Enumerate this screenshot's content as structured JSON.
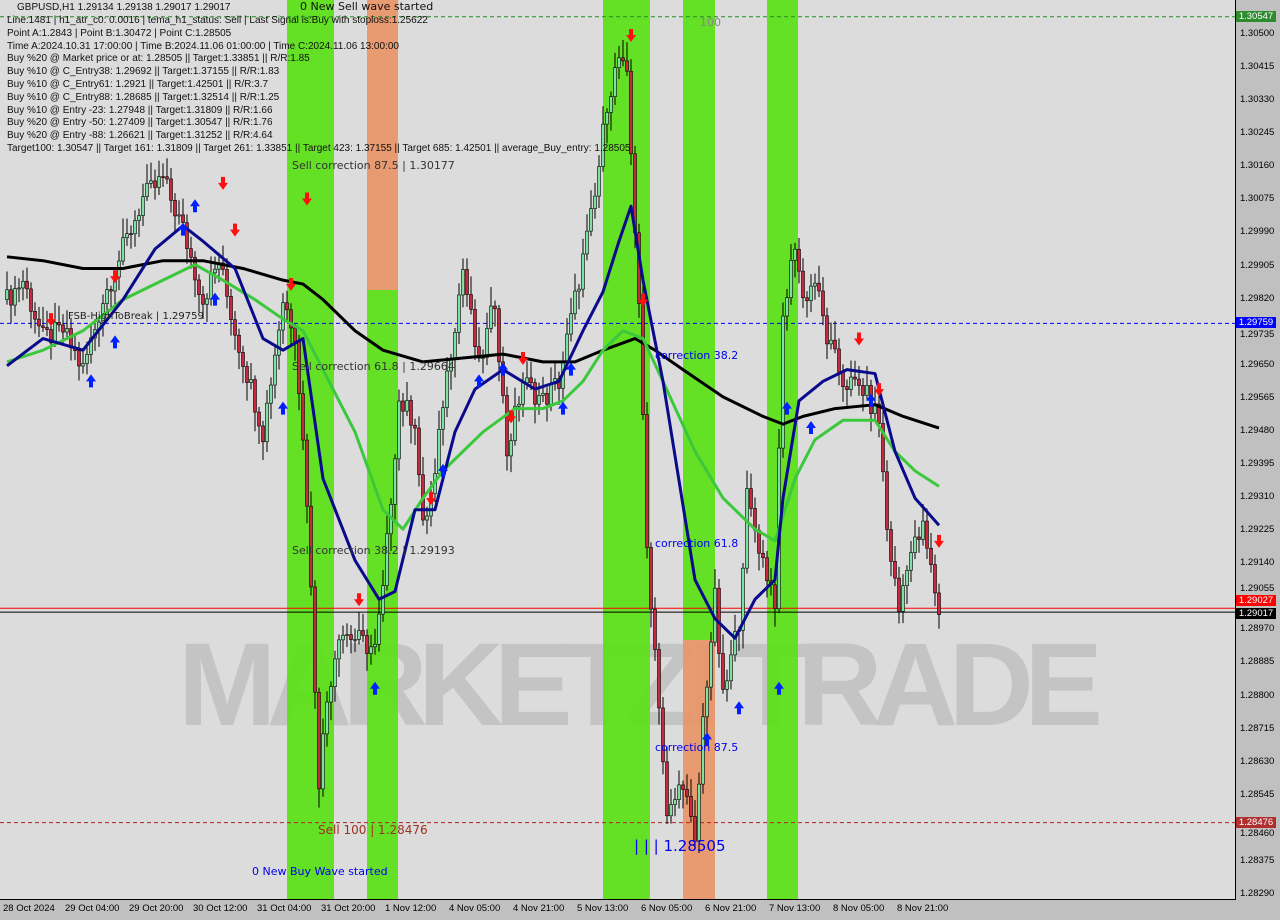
{
  "header": {
    "symbol_line": "GBPUSD,H1  1.29134 1.29138 1.29017 1.29017",
    "wave_top": "0 New Sell wave started"
  },
  "info_lines": [
    "Line:1481 | h1_atr_c0: 0.0016 | tema_h1_status: Sell | Last Signal is:Buy with stoploss:1.25622",
    "Point A:1.2843 | Point B:1.30472 | Point C:1.28505",
    "Time A:2024.10.31 17:00:00 | Time B:2024.11.06 01:00:00 | Time C:2024.11.06 13:00:00",
    "Buy %20 @ Market price or at: 1.28505 || Target:1.33851 || R/R:1.85",
    "Buy %10 @ C_Entry38: 1.29692 || Target:1.37155 || R/R:1.83",
    "Buy %10 @ C_Entry61: 1.2921 || Target:1.42501 || R/R:3.7",
    "Buy %10 @ C_Entry88: 1.28685 || Target:1.32514 || R/R:1.25",
    "Buy %10 @ Entry -23: 1.27948 || Target:1.31809 || R/R:1.66",
    "Buy %20 @ Entry -50: 1.27409 || Target:1.30547 || R/R:1.76",
    "Buy %20 @ Entry -88: 1.26621 || Target:1.31252 || R/R:4.64",
    "Target100: 1.30547 || Target 161: 1.31809 || Target 261: 1.33851 || Target 423: 1.37155 || Target 685: 1.42501 || average_Buy_entry: 1.28505"
  ],
  "annotations": {
    "sell_875": "Sell correction 87.5 | 1.30177",
    "sell_618": "Sell correction 61.8 | 1.29664",
    "sell_382": "Sell correction 38.2 | 1.29193",
    "sell_100": "Sell 100 | 1.28476",
    "buy_wave": "0 New Buy Wave started",
    "corr_382": "correction 38.2",
    "corr_618": "correction 61.8",
    "corr_875": "correction 87.5",
    "point_c": "| | | 1.28505",
    "hundred": "100",
    "fsb": "FSB-HighToBreak | 1.29759",
    "watermark": "MARKETZI TRADE"
  },
  "colors": {
    "up": "#7fe0a0",
    "down": "#c8283c",
    "ma_slow": "#000000",
    "ma_mid": "#3cc83c",
    "ma_fast": "#0a0a8c",
    "band_green": "#5ee01a",
    "band_orange": "#e8966a",
    "background": "#dcdcdc"
  },
  "chart_data": {
    "type": "candlestick",
    "symbol": "GBPUSD",
    "timeframe": "H1",
    "ylim": [
      1.2829,
      1.3055
    ],
    "y_ticks": [
      "1.30500",
      "1.30415",
      "1.30330",
      "1.30245",
      "1.30160",
      "1.30075",
      "1.29990",
      "1.29905",
      "1.29820",
      "1.29735",
      "1.29650",
      "1.29565",
      "1.29480",
      "1.29395",
      "1.29310",
      "1.29225",
      "1.29140",
      "1.29055",
      "1.28970",
      "1.28885",
      "1.28800",
      "1.28715",
      "1.28630",
      "1.28545",
      "1.28460",
      "1.28375",
      "1.28290"
    ],
    "x_ticks": [
      "28 Oct 2024",
      "29 Oct 04:00",
      "29 Oct 20:00",
      "30 Oct 12:00",
      "31 Oct 04:00",
      "31 Oct 20:00",
      "1 Nov 12:00",
      "4 Nov 05:00",
      "4 Nov 21:00",
      "5 Nov 13:00",
      "6 Nov 05:00",
      "6 Nov 21:00",
      "7 Nov 13:00",
      "8 Nov 05:00",
      "8 Nov 21:00"
    ],
    "levels": [
      {
        "price": 1.30547,
        "label": "1.30547",
        "color": "#228b22",
        "style": "dashed"
      },
      {
        "price": 1.29759,
        "label": "1.29759",
        "color": "#0000ff",
        "style": "dashed"
      },
      {
        "price": 1.29027,
        "label": "1.29027",
        "color": "#ff0000",
        "style": "solid"
      },
      {
        "price": 1.29017,
        "label": "1.29017",
        "color": "#000000",
        "style": "solid"
      },
      {
        "price": 1.28476,
        "label": "1.28476",
        "color": "#b22222",
        "style": "dashed"
      }
    ],
    "close_path": [
      [
        1,
        1.2982
      ],
      [
        5,
        1.2987
      ],
      [
        10,
        1.2972
      ],
      [
        15,
        1.2974
      ],
      [
        20,
        1.2964
      ],
      [
        25,
        1.2982
      ],
      [
        30,
        1.2995
      ],
      [
        35,
        1.3008
      ],
      [
        40,
        1.3013
      ],
      [
        45,
        1.3
      ],
      [
        50,
        1.2982
      ],
      [
        54,
        1.2992
      ],
      [
        58,
        1.2974
      ],
      [
        63,
        1.2956
      ],
      [
        65,
        1.2948
      ],
      [
        70,
        1.2982
      ],
      [
        73,
        1.2974
      ],
      [
        76,
        1.2931
      ],
      [
        79,
        1.2859
      ],
      [
        81,
        1.2879
      ],
      [
        84,
        1.2897
      ],
      [
        88,
        1.2895
      ],
      [
        93,
        1.2892
      ],
      [
        95,
        1.2907
      ],
      [
        99,
        1.2956
      ],
      [
        103,
        1.2951
      ],
      [
        105,
        1.2923
      ],
      [
        108,
        1.2936
      ],
      [
        110,
        1.2956
      ],
      [
        115,
        1.299
      ],
      [
        119,
        1.2964
      ],
      [
        123,
        1.2982
      ],
      [
        126,
        1.2943
      ],
      [
        130,
        1.2961
      ],
      [
        135,
        1.2956
      ],
      [
        139,
        1.2961
      ],
      [
        143,
        1.2982
      ],
      [
        148,
        1.3008
      ],
      [
        151,
        1.3033
      ],
      [
        154,
        1.3044
      ],
      [
        156,
        1.3038
      ],
      [
        159,
        1.2982
      ],
      [
        161,
        1.2918
      ],
      [
        164,
        1.2879
      ],
      [
        166,
        1.2848
      ],
      [
        170,
        1.2859
      ],
      [
        173,
        1.2841
      ],
      [
        175,
        1.2874
      ],
      [
        178,
        1.2905
      ],
      [
        180,
        1.2879
      ],
      [
        184,
        1.29
      ],
      [
        186,
        1.2931
      ],
      [
        190,
        1.2915
      ],
      [
        193,
        1.2905
      ],
      [
        195,
        1.2977
      ],
      [
        198,
        1.2997
      ],
      [
        200,
        1.2982
      ],
      [
        203,
        1.2987
      ],
      [
        206,
        1.2972
      ],
      [
        210,
        1.2961
      ],
      [
        215,
        1.2959
      ],
      [
        219,
        1.2951
      ],
      [
        221,
        1.2923
      ],
      [
        224,
        1.2902
      ],
      [
        226,
        1.2915
      ],
      [
        230,
        1.2923
      ],
      [
        234,
        1.2902
      ]
    ],
    "series": [
      {
        "key": "ma_fast",
        "points": [
          [
            1,
            1.2965
          ],
          [
            10,
            1.2972
          ],
          [
            20,
            1.2969
          ],
          [
            30,
            1.2982
          ],
          [
            38,
            1.2995
          ],
          [
            45,
            1.3001
          ],
          [
            50,
            1.2997
          ],
          [
            58,
            1.299
          ],
          [
            65,
            1.2972
          ],
          [
            70,
            1.2969
          ],
          [
            75,
            1.2972
          ],
          [
            80,
            1.2936
          ],
          [
            88,
            1.2915
          ],
          [
            94,
            1.2905
          ],
          [
            98,
            1.2907
          ],
          [
            103,
            1.2928
          ],
          [
            108,
            1.2928
          ],
          [
            113,
            1.2948
          ],
          [
            118,
            1.2959
          ],
          [
            125,
            1.2964
          ],
          [
            133,
            1.2959
          ],
          [
            139,
            1.2961
          ],
          [
            145,
            1.2974
          ],
          [
            150,
            1.2984
          ],
          [
            154,
            1.2997
          ],
          [
            157,
            1.3006
          ],
          [
            160,
            1.2987
          ],
          [
            165,
            1.2961
          ],
          [
            173,
            1.291
          ],
          [
            178,
            1.29
          ],
          [
            183,
            1.2895
          ],
          [
            188,
            1.2905
          ],
          [
            193,
            1.291
          ],
          [
            195,
            1.2931
          ],
          [
            199,
            1.2956
          ],
          [
            205,
            1.2961
          ],
          [
            211,
            1.2964
          ],
          [
            218,
            1.2963
          ],
          [
            223,
            1.2943
          ],
          [
            228,
            1.2931
          ],
          [
            234,
            1.2924
          ]
        ]
      },
      {
        "key": "ma_mid",
        "points": [
          [
            1,
            1.2966
          ],
          [
            10,
            1.2969
          ],
          [
            20,
            1.2974
          ],
          [
            30,
            1.2982
          ],
          [
            40,
            1.2987
          ],
          [
            48,
            1.2991
          ],
          [
            55,
            1.2987
          ],
          [
            63,
            1.2982
          ],
          [
            70,
            1.2977
          ],
          [
            75,
            1.2974
          ],
          [
            80,
            1.2964
          ],
          [
            88,
            1.2948
          ],
          [
            95,
            1.2928
          ],
          [
            100,
            1.2923
          ],
          [
            105,
            1.2931
          ],
          [
            110,
            1.2938
          ],
          [
            115,
            1.2943
          ],
          [
            120,
            1.2948
          ],
          [
            128,
            1.2954
          ],
          [
            135,
            1.2954
          ],
          [
            140,
            1.2956
          ],
          [
            145,
            1.2961
          ],
          [
            150,
            1.2969
          ],
          [
            155,
            1.2974
          ],
          [
            160,
            1.2972
          ],
          [
            165,
            1.2961
          ],
          [
            173,
            1.2943
          ],
          [
            180,
            1.2931
          ],
          [
            188,
            1.2923
          ],
          [
            193,
            1.292
          ],
          [
            198,
            1.2936
          ],
          [
            203,
            1.2946
          ],
          [
            210,
            1.2951
          ],
          [
            218,
            1.2951
          ],
          [
            223,
            1.2943
          ],
          [
            228,
            1.2938
          ],
          [
            234,
            1.2934
          ]
        ]
      },
      {
        "key": "ma_slow",
        "points": [
          [
            1,
            1.2993
          ],
          [
            10,
            1.2992
          ],
          [
            20,
            1.299
          ],
          [
            30,
            1.299
          ],
          [
            40,
            1.2992
          ],
          [
            50,
            1.2992
          ],
          [
            60,
            1.299
          ],
          [
            70,
            1.2987
          ],
          [
            75,
            1.2986
          ],
          [
            80,
            1.2982
          ],
          [
            88,
            1.2974
          ],
          [
            95,
            1.2969
          ],
          [
            105,
            1.2966
          ],
          [
            115,
            1.2967
          ],
          [
            125,
            1.2968
          ],
          [
            135,
            1.2966
          ],
          [
            143,
            1.2966
          ],
          [
            150,
            1.2969
          ],
          [
            158,
            1.2972
          ],
          [
            163,
            1.2969
          ],
          [
            170,
            1.2964
          ],
          [
            180,
            1.2957
          ],
          [
            190,
            1.2952
          ],
          [
            195,
            1.295
          ],
          [
            200,
            1.2952
          ],
          [
            208,
            1.2954
          ],
          [
            218,
            1.2955
          ],
          [
            225,
            1.2952
          ],
          [
            234,
            1.2949
          ]
        ]
      }
    ],
    "signals": [
      {
        "bar": 12,
        "price": 1.2977,
        "dir": "down"
      },
      {
        "bar": 22,
        "price": 1.2961,
        "dir": "up"
      },
      {
        "bar": 28,
        "price": 1.2971,
        "dir": "up"
      },
      {
        "bar": 28,
        "price": 1.2988,
        "dir": "down"
      },
      {
        "bar": 45,
        "price": 1.3,
        "dir": "up"
      },
      {
        "bar": 48,
        "price": 1.3006,
        "dir": "up"
      },
      {
        "bar": 53,
        "price": 1.2982,
        "dir": "up"
      },
      {
        "bar": 55,
        "price": 1.3012,
        "dir": "down"
      },
      {
        "bar": 58,
        "price": 1.3,
        "dir": "down"
      },
      {
        "bar": 70,
        "price": 1.2954,
        "dir": "up"
      },
      {
        "bar": 72,
        "price": 1.2986,
        "dir": "down"
      },
      {
        "bar": 76,
        "price": 1.3008,
        "dir": "down"
      },
      {
        "bar": 89,
        "price": 1.2905,
        "dir": "down"
      },
      {
        "bar": 93,
        "price": 1.2882,
        "dir": "up"
      },
      {
        "bar": 107,
        "price": 1.2931,
        "dir": "down"
      },
      {
        "bar": 110,
        "price": 1.2938,
        "dir": "up"
      },
      {
        "bar": 119,
        "price": 1.2961,
        "dir": "up"
      },
      {
        "bar": 125,
        "price": 1.2964,
        "dir": "up"
      },
      {
        "bar": 127,
        "price": 1.2952,
        "dir": "down"
      },
      {
        "bar": 130,
        "price": 1.2967,
        "dir": "down"
      },
      {
        "bar": 140,
        "price": 1.2954,
        "dir": "up"
      },
      {
        "bar": 142,
        "price": 1.2964,
        "dir": "up"
      },
      {
        "bar": 157,
        "price": 1.305,
        "dir": "down"
      },
      {
        "bar": 160,
        "price": 1.2982,
        "dir": "down"
      },
      {
        "bar": 176,
        "price": 1.2869,
        "dir": "up"
      },
      {
        "bar": 184,
        "price": 1.2877,
        "dir": "up"
      },
      {
        "bar": 194,
        "price": 1.2882,
        "dir": "up"
      },
      {
        "bar": 196,
        "price": 1.2954,
        "dir": "up"
      },
      {
        "bar": 202,
        "price": 1.2949,
        "dir": "up"
      },
      {
        "bar": 214,
        "price": 1.2972,
        "dir": "down"
      },
      {
        "bar": 217,
        "price": 1.2956,
        "dir": "up"
      },
      {
        "bar": 219,
        "price": 1.2959,
        "dir": "down"
      },
      {
        "bar": 234,
        "price": 1.292,
        "dir": "down"
      }
    ]
  }
}
